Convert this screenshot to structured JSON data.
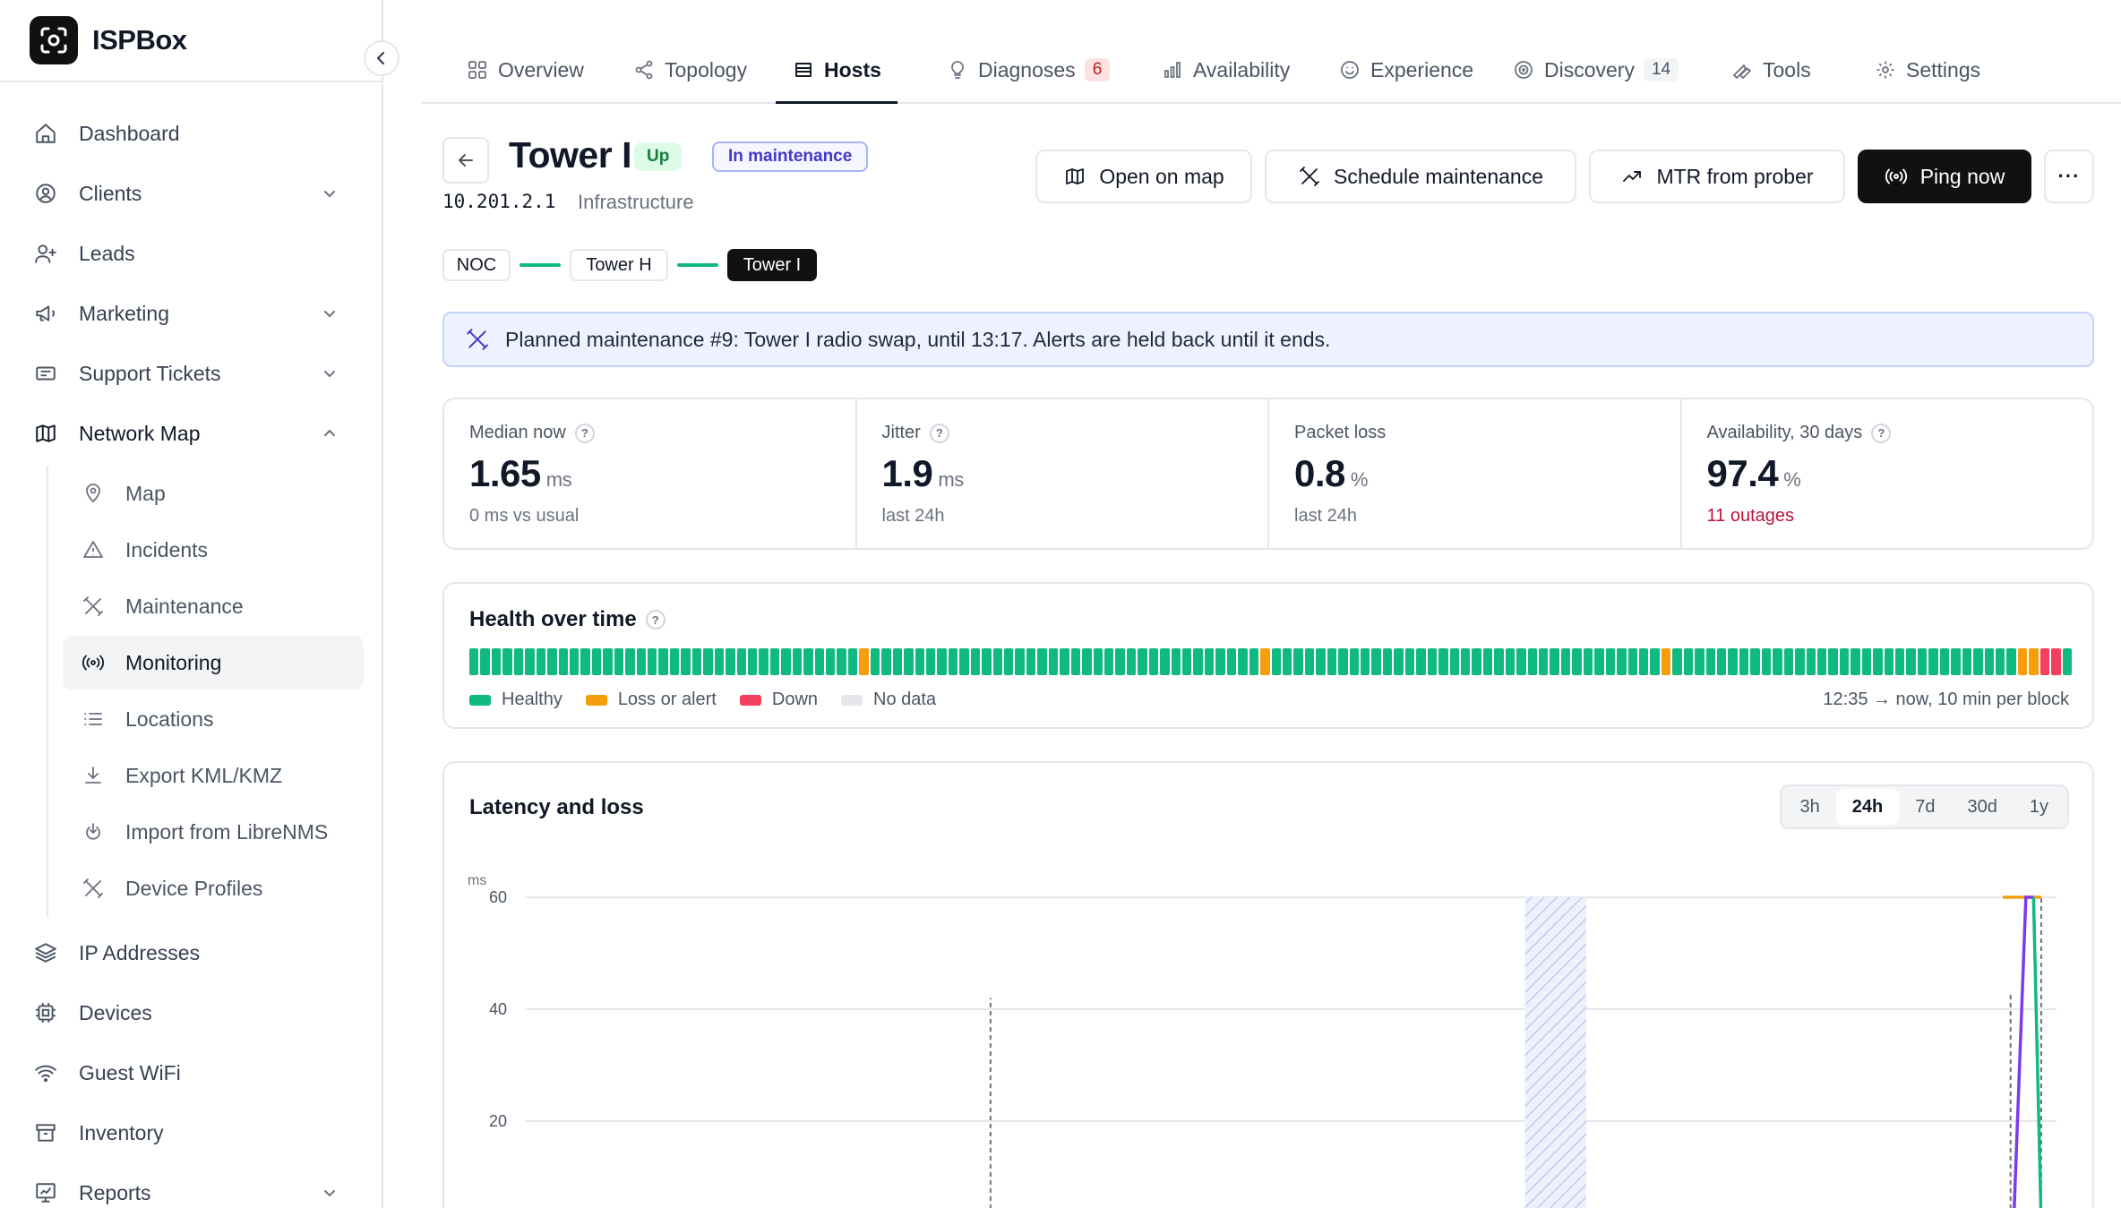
{
  "brand": {
    "name": "ISPBox"
  },
  "sidebar": {
    "items": [
      {
        "label": "Dashboard",
        "icon": "home-icon"
      },
      {
        "label": "Clients",
        "icon": "user-circle-icon"
      },
      {
        "label": "Leads",
        "icon": "user-plus-icon"
      },
      {
        "label": "Marketing",
        "icon": "megaphone-icon"
      },
      {
        "label": "Support Tickets",
        "icon": "ticket-icon"
      },
      {
        "label": "Network Map",
        "icon": "map-icon"
      },
      {
        "label": "IP Addresses",
        "icon": "layers-icon"
      },
      {
        "label": "Devices",
        "icon": "chip-icon"
      },
      {
        "label": "Guest WiFi",
        "icon": "wifi-icon"
      },
      {
        "label": "Inventory",
        "icon": "archive-icon"
      },
      {
        "label": "Reports",
        "icon": "report-icon"
      }
    ],
    "network_sub": [
      {
        "label": "Map",
        "icon": "pin-icon"
      },
      {
        "label": "Incidents",
        "icon": "warning-icon"
      },
      {
        "label": "Maintenance",
        "icon": "tools-icon"
      },
      {
        "label": "Monitoring",
        "icon": "broadcast-icon"
      },
      {
        "label": "Locations",
        "icon": "list-icon"
      },
      {
        "label": "Export KML/KMZ",
        "icon": "download-icon"
      },
      {
        "label": "Import from LibreNMS",
        "icon": "import-icon"
      },
      {
        "label": "Device Profiles",
        "icon": "tools-icon"
      }
    ]
  },
  "tabs": [
    {
      "label": "Overview",
      "icon": "grid-icon"
    },
    {
      "label": "Topology",
      "icon": "share-icon"
    },
    {
      "label": "Hosts",
      "icon": "server-icon"
    },
    {
      "label": "Diagnoses",
      "icon": "bulb-icon",
      "badge": "6"
    },
    {
      "label": "Availability",
      "icon": "bar-chart-icon"
    },
    {
      "label": "Experience",
      "icon": "smile-icon"
    },
    {
      "label": "Discovery",
      "icon": "radar-icon",
      "badge": "14"
    },
    {
      "label": "Tools",
      "icon": "wrench-icon"
    },
    {
      "label": "Settings",
      "icon": "gear-icon"
    }
  ],
  "host": {
    "name": "Tower I",
    "status": "Up",
    "maintenance_badge": "In maintenance",
    "ip": "10.201.2.1",
    "role": "Infrastructure"
  },
  "actions": {
    "open_map": "Open on map",
    "schedule": "Schedule maintenance",
    "mtr": "MTR from prober",
    "ping": "Ping now",
    "more": "···"
  },
  "path": [
    "NOC",
    "Tower H",
    "Tower I"
  ],
  "banner": {
    "text": "Planned maintenance #9: Tower I radio swap, until 13:17. Alerts are held back until it ends."
  },
  "stats": [
    {
      "label": "Median now",
      "value": "1.65",
      "unit": "ms",
      "sub": "0 ms vs usual",
      "help": "?"
    },
    {
      "label": "Jitter",
      "value": "1.9",
      "unit": "ms",
      "sub": "last 24h",
      "help": "?"
    },
    {
      "label": "Packet loss",
      "value": "0.8",
      "unit": "%",
      "sub": "last 24h",
      "help": ""
    },
    {
      "label": "Availability, 30 days",
      "value": "97.4",
      "unit": "%",
      "sub": "11 outages",
      "help": "?"
    }
  ],
  "health": {
    "title": "Health over time",
    "help": "?",
    "legend": [
      "Healthy",
      "Loss or alert",
      "Down",
      "No data"
    ],
    "range": "12:35 → now, 10 min per block",
    "colors": {
      "healthy": "#10b981",
      "alert": "#f59e0b",
      "down": "#f43f5e",
      "nodata": "#e5e7eb"
    },
    "block_count": 144,
    "alert_blocks": [
      35,
      71,
      107,
      139,
      140
    ],
    "down_blocks": [
      141,
      142
    ]
  },
  "latency": {
    "title": "Latency and loss",
    "ranges": [
      "3h",
      "24h",
      "7d",
      "30d",
      "1y"
    ],
    "active_range": "24h"
  },
  "chart_data": {
    "type": "line",
    "title": "Latency and loss",
    "ylabel": "ms",
    "ylim": [
      0,
      60
    ],
    "yticks": [
      20,
      40,
      60
    ],
    "x_domain": [
      0,
      1
    ],
    "maintenance_window": [
      0.653,
      0.693
    ],
    "spike_markers": [
      {
        "x": 0.304,
        "y": 42
      },
      {
        "x": 0.97,
        "y": 43
      },
      {
        "x": 0.99,
        "y": 60
      }
    ],
    "series": [
      {
        "color": "#f59e0b",
        "x": [
          0.965,
          0.99
        ],
        "y": [
          60,
          60
        ]
      },
      {
        "color": "#7c3aed",
        "x": [
          0.972,
          0.98,
          0.985
        ],
        "y": [
          1.6,
          60,
          60
        ]
      },
      {
        "color": "#10b981",
        "x": [
          0.985,
          0.99
        ],
        "y": [
          60,
          1.6
        ]
      }
    ]
  }
}
